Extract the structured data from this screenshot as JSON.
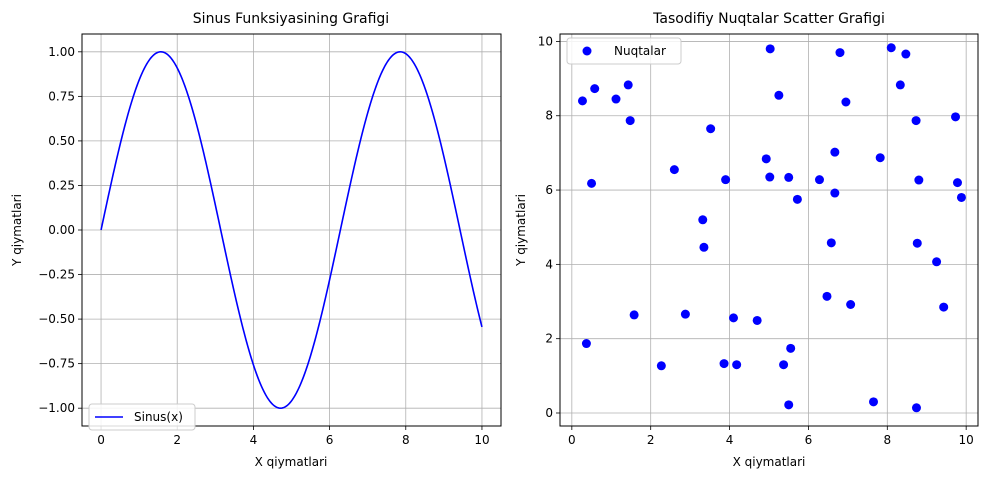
{
  "chart_data": [
    {
      "type": "line",
      "title": "Sinus Funksiyasining Grafigi",
      "xlabel": "X qiymatlari",
      "ylabel": "Y qiymatlari",
      "xlim": [
        -0.5,
        10.5
      ],
      "ylim": [
        -1.1,
        1.1
      ],
      "xticks": [
        0,
        2,
        4,
        6,
        8,
        10
      ],
      "xtick_labels": [
        "0",
        "2",
        "4",
        "6",
        "8",
        "10"
      ],
      "yticks": [
        -1.0,
        -0.75,
        -0.5,
        -0.25,
        0.0,
        0.25,
        0.5,
        0.75,
        1.0
      ],
      "ytick_labels": [
        "−1.00",
        "−0.75",
        "−0.50",
        "−0.25",
        "0.00",
        "0.25",
        "0.50",
        "0.75",
        "1.00"
      ],
      "grid": true,
      "legend_position": "lower-left",
      "series": [
        {
          "name": "Sinus(x)",
          "function": "sin(x)",
          "x_range": [
            0,
            10
          ],
          "color": "#0000ff"
        }
      ]
    },
    {
      "type": "scatter",
      "title": "Tasodifiy Nuqtalar Scatter Grafigi",
      "xlabel": "X qiymatlari",
      "ylabel": "Y qiymatlari",
      "xlim": [
        -0.3,
        10.3
      ],
      "ylim": [
        -0.35,
        10.2
      ],
      "xticks": [
        0,
        2,
        4,
        6,
        8,
        10
      ],
      "xtick_labels": [
        "0",
        "2",
        "4",
        "6",
        "8",
        "10"
      ],
      "yticks": [
        0,
        2,
        4,
        6,
        8,
        10
      ],
      "ytick_labels": [
        "0",
        "2",
        "4",
        "6",
        "8",
        "10"
      ],
      "grid": true,
      "legend_position": "upper-left",
      "series": [
        {
          "name": "Nuqtalar",
          "color": "#0000ff",
          "points": [
            [
              0.27,
              8.4
            ],
            [
              0.58,
              8.73
            ],
            [
              0.5,
              6.18
            ],
            [
              0.37,
              1.87
            ],
            [
              1.12,
              8.45
            ],
            [
              1.43,
              8.83
            ],
            [
              1.48,
              7.87
            ],
            [
              1.58,
              2.64
            ],
            [
              2.27,
              1.27
            ],
            [
              2.6,
              6.55
            ],
            [
              2.88,
              2.66
            ],
            [
              3.35,
              4.46
            ],
            [
              3.32,
              5.2
            ],
            [
              3.52,
              7.65
            ],
            [
              3.86,
              1.33
            ],
            [
              3.9,
              6.28
            ],
            [
              4.1,
              2.56
            ],
            [
              4.18,
              1.3
            ],
            [
              4.7,
              2.49
            ],
            [
              4.93,
              6.84
            ],
            [
              5.03,
              9.8
            ],
            [
              5.02,
              6.35
            ],
            [
              5.25,
              8.55
            ],
            [
              5.37,
              1.3
            ],
            [
              5.5,
              6.34
            ],
            [
              5.5,
              0.22
            ],
            [
              5.55,
              1.74
            ],
            [
              5.72,
              5.75
            ],
            [
              6.28,
              6.28
            ],
            [
              6.47,
              3.14
            ],
            [
              6.58,
              4.58
            ],
            [
              6.67,
              7.02
            ],
            [
              6.67,
              5.92
            ],
            [
              6.8,
              9.7
            ],
            [
              6.95,
              8.37
            ],
            [
              7.07,
              2.92
            ],
            [
              7.65,
              0.3
            ],
            [
              7.82,
              6.87
            ],
            [
              8.1,
              9.83
            ],
            [
              8.33,
              8.83
            ],
            [
              8.47,
              9.66
            ],
            [
              8.73,
              7.87
            ],
            [
              8.76,
              4.57
            ],
            [
              8.8,
              6.27
            ],
            [
              8.74,
              0.14
            ],
            [
              9.25,
              4.07
            ],
            [
              9.43,
              2.85
            ],
            [
              9.73,
              7.97
            ],
            [
              9.78,
              6.2
            ],
            [
              9.88,
              5.8
            ]
          ]
        }
      ]
    }
  ]
}
